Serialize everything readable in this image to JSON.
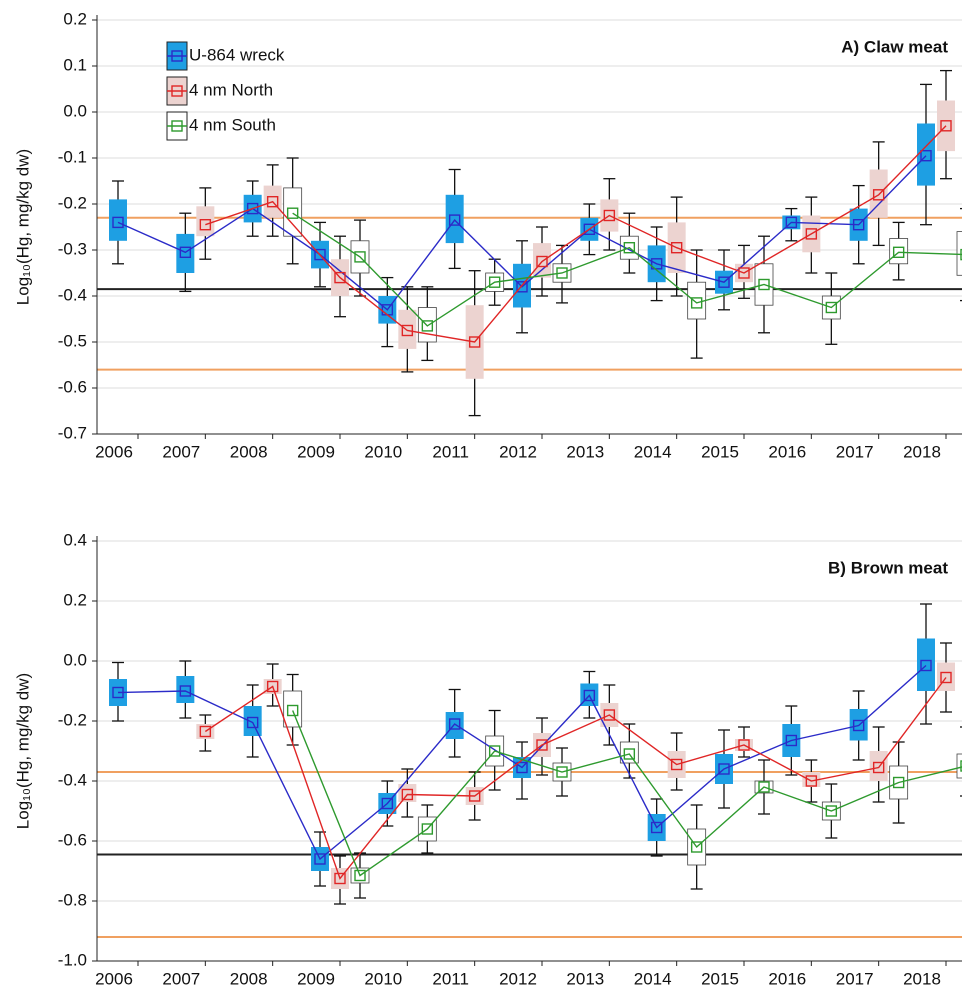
{
  "chart_data": [
    {
      "type": "box",
      "annotation": "A) Claw meat",
      "y_label": "Log₁₀(Hg, mg/kg dw)",
      "categories": [
        "2006",
        "2007",
        "2008",
        "2009",
        "2010",
        "2011",
        "2012",
        "2013",
        "2014",
        "2015",
        "2016",
        "2017",
        "2018"
      ],
      "ylim": [
        -0.7,
        0.2
      ],
      "yticks": [
        0.2,
        0.1,
        {
          "value": 0,
          "label": "0.0"
        },
        -0.1,
        -0.2,
        -0.3,
        -0.4,
        -0.5,
        -0.6,
        -0.7
      ],
      "grid": true,
      "legend": "upper left",
      "reference_lines": [
        {
          "value": -0.23,
          "color": "#f0a060"
        },
        {
          "value": -0.56,
          "color": "#f0a060"
        },
        {
          "value": -0.385,
          "color": "#222222"
        }
      ],
      "series": [
        {
          "name": "U-864 wreck",
          "color": "#2b2bc8",
          "box_color": "#1e9fe3",
          "values": [
            -0.24,
            -0.305,
            -0.21,
            -0.31,
            -0.43,
            -0.235,
            -0.38,
            -0.255,
            -0.33,
            -0.37,
            -0.24,
            -0.245,
            -0.095
          ],
          "box_low": [
            -0.28,
            -0.35,
            -0.24,
            -0.34,
            -0.46,
            -0.285,
            -0.425,
            -0.28,
            -0.37,
            -0.395,
            -0.255,
            -0.28,
            -0.16
          ],
          "box_high": [
            -0.19,
            -0.265,
            -0.18,
            -0.28,
            -0.4,
            -0.18,
            -0.33,
            -0.23,
            -0.29,
            -0.345,
            -0.225,
            -0.21,
            -0.025
          ],
          "whisker_low": [
            -0.33,
            -0.39,
            -0.27,
            -0.38,
            -0.51,
            -0.34,
            -0.48,
            -0.31,
            -0.41,
            -0.43,
            -0.28,
            -0.33,
            -0.245
          ],
          "whisker_high": [
            -0.15,
            -0.22,
            -0.15,
            -0.24,
            -0.36,
            -0.125,
            -0.28,
            -0.2,
            -0.25,
            -0.3,
            -0.21,
            -0.16,
            0.06
          ]
        },
        {
          "name": "4 nm North",
          "color": "#e02626",
          "box_color": "#ecd3d0",
          "values": [
            null,
            -0.245,
            -0.195,
            -0.36,
            -0.475,
            -0.5,
            -0.325,
            -0.225,
            -0.295,
            -0.35,
            -0.265,
            -0.18,
            -0.03
          ],
          "box_low": [
            null,
            -0.27,
            -0.23,
            -0.4,
            -0.515,
            -0.58,
            -0.36,
            -0.26,
            -0.35,
            -0.37,
            -0.305,
            -0.23,
            -0.085
          ],
          "box_high": [
            null,
            -0.205,
            -0.16,
            -0.32,
            -0.43,
            -0.42,
            -0.285,
            -0.19,
            -0.24,
            -0.33,
            -0.225,
            -0.125,
            0.025
          ],
          "whisker_low": [
            null,
            -0.32,
            -0.27,
            -0.445,
            -0.565,
            -0.66,
            -0.4,
            -0.3,
            -0.4,
            -0.405,
            -0.35,
            -0.29,
            -0.145
          ],
          "whisker_high": [
            null,
            -0.165,
            -0.115,
            -0.27,
            -0.38,
            -0.345,
            -0.25,
            -0.145,
            -0.185,
            -0.29,
            -0.185,
            -0.065,
            0.09
          ]
        },
        {
          "name": "4 nm South",
          "color": "#2e9a2e",
          "box_color": "#ffffff",
          "values": [
            null,
            null,
            -0.22,
            -0.315,
            -0.465,
            -0.37,
            -0.35,
            -0.295,
            -0.415,
            -0.375,
            -0.425,
            -0.305,
            -0.31
          ],
          "box_low": [
            null,
            null,
            -0.27,
            -0.35,
            -0.5,
            -0.39,
            -0.37,
            -0.32,
            -0.45,
            -0.42,
            -0.45,
            -0.33,
            -0.355
          ],
          "box_high": [
            null,
            null,
            -0.165,
            -0.28,
            -0.425,
            -0.35,
            -0.33,
            -0.27,
            -0.37,
            -0.33,
            -0.4,
            -0.275,
            -0.26
          ],
          "whisker_low": [
            null,
            null,
            -0.33,
            -0.4,
            -0.54,
            -0.42,
            -0.415,
            -0.35,
            -0.535,
            -0.48,
            -0.505,
            -0.365,
            -0.41
          ],
          "whisker_high": [
            null,
            null,
            -0.1,
            -0.235,
            -0.38,
            -0.32,
            -0.29,
            -0.22,
            -0.3,
            -0.27,
            -0.35,
            -0.24,
            -0.21
          ]
        }
      ]
    },
    {
      "type": "box",
      "annotation": "B) Brown meat",
      "y_label": "Log₁₀(Hg, mg/kg dw)",
      "categories": [
        "2006",
        "2007",
        "2008",
        "2009",
        "2010",
        "2011",
        "2012",
        "2013",
        "2014",
        "2015",
        "2016",
        "2017",
        "2018"
      ],
      "ylim": [
        -1,
        0.4
      ],
      "yticks": [
        0.4,
        0.2,
        {
          "value": 0,
          "label": "0.0"
        },
        -0.2,
        -0.4,
        -0.6,
        -0.8,
        {
          "value": -1,
          "label": "-1.0"
        }
      ],
      "grid": true,
      "reference_lines": [
        {
          "value": -0.37,
          "color": "#f0a060"
        },
        {
          "value": -0.92,
          "color": "#f0a060"
        },
        {
          "value": -0.645,
          "color": "#222222"
        }
      ],
      "series": [
        {
          "color": "#2b2bc8",
          "box_color": "#1e9fe3",
          "values": [
            -0.105,
            -0.1,
            -0.205,
            -0.66,
            -0.475,
            -0.21,
            -0.355,
            -0.115,
            -0.555,
            -0.36,
            -0.265,
            -0.215,
            -0.015
          ],
          "box_low": [
            -0.15,
            -0.14,
            -0.25,
            -0.7,
            -0.51,
            -0.26,
            -0.39,
            -0.15,
            -0.6,
            -0.41,
            -0.32,
            -0.265,
            -0.1
          ],
          "box_high": [
            -0.06,
            -0.05,
            -0.15,
            -0.62,
            -0.44,
            -0.17,
            -0.32,
            -0.075,
            -0.51,
            -0.31,
            -0.21,
            -0.16,
            0.075
          ],
          "whisker_low": [
            -0.2,
            -0.19,
            -0.32,
            -0.75,
            -0.55,
            -0.32,
            -0.46,
            -0.19,
            -0.65,
            -0.49,
            -0.38,
            -0.33,
            -0.21
          ],
          "whisker_high": [
            -0.005,
            0,
            -0.08,
            -0.57,
            -0.4,
            -0.095,
            -0.27,
            -0.035,
            -0.46,
            -0.23,
            -0.15,
            -0.1,
            0.19
          ]
        },
        {
          "color": "#e02626",
          "box_color": "#ecd3d0",
          "values": [
            null,
            -0.235,
            -0.085,
            -0.725,
            -0.445,
            -0.45,
            -0.28,
            -0.18,
            -0.345,
            -0.28,
            -0.4,
            -0.355,
            -0.055
          ],
          "box_low": [
            null,
            -0.26,
            -0.11,
            -0.76,
            -0.47,
            -0.48,
            -0.32,
            -0.22,
            -0.39,
            -0.3,
            -0.42,
            -0.4,
            -0.1
          ],
          "box_high": [
            null,
            -0.21,
            -0.06,
            -0.69,
            -0.41,
            -0.42,
            -0.24,
            -0.14,
            -0.3,
            -0.26,
            -0.37,
            -0.3,
            -0.005
          ],
          "whisker_low": [
            null,
            -0.3,
            -0.15,
            -0.81,
            -0.52,
            -0.53,
            -0.38,
            -0.28,
            -0.43,
            -0.32,
            -0.47,
            -0.47,
            -0.17
          ],
          "whisker_high": [
            null,
            -0.18,
            -0.01,
            -0.65,
            -0.36,
            -0.37,
            -0.19,
            -0.08,
            -0.24,
            -0.22,
            -0.33,
            -0.22,
            0.06
          ]
        },
        {
          "color": "#2e9a2e",
          "box_color": "#ffffff",
          "values": [
            null,
            null,
            -0.165,
            -0.715,
            -0.56,
            -0.3,
            -0.37,
            -0.31,
            -0.62,
            -0.42,
            -0.5,
            -0.405,
            -0.35
          ],
          "box_low": [
            null,
            null,
            -0.22,
            -0.74,
            -0.6,
            -0.35,
            -0.4,
            -0.34,
            -0.68,
            -0.44,
            -0.53,
            -0.46,
            -0.39
          ],
          "box_high": [
            null,
            null,
            -0.1,
            -0.69,
            -0.52,
            -0.25,
            -0.34,
            -0.27,
            -0.56,
            -0.4,
            -0.47,
            -0.35,
            -0.31
          ],
          "whisker_low": [
            null,
            null,
            -0.28,
            -0.79,
            -0.64,
            -0.43,
            -0.45,
            -0.39,
            -0.76,
            -0.51,
            -0.59,
            -0.54,
            -0.45
          ],
          "whisker_high": [
            null,
            null,
            -0.045,
            -0.64,
            -0.48,
            -0.165,
            -0.29,
            -0.21,
            -0.48,
            -0.33,
            -0.41,
            -0.27,
            -0.22
          ]
        }
      ]
    }
  ]
}
